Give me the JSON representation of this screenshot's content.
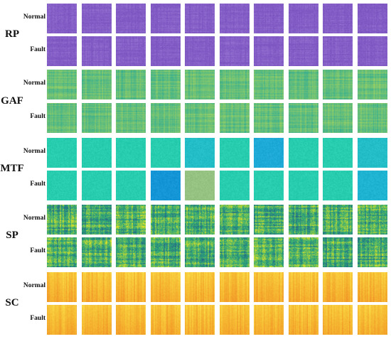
{
  "figure": {
    "groups": [
      {
        "name": "RP",
        "colormap": "purple",
        "rows": [
          {
            "label": "Normal",
            "tiles": 10
          },
          {
            "label": "Fault",
            "tiles": 10
          }
        ]
      },
      {
        "name": "GAF",
        "colormap": "viridis-light",
        "rows": [
          {
            "label": "Normal",
            "tiles": 10
          },
          {
            "label": "Fault",
            "tiles": 10
          }
        ]
      },
      {
        "name": "MTF",
        "colormap": "teal",
        "rows": [
          {
            "label": "Normal",
            "tiles": 10
          },
          {
            "label": "Fault",
            "tiles": 10
          }
        ]
      },
      {
        "name": "SP",
        "colormap": "viridis",
        "rows": [
          {
            "label": "Normal",
            "tiles": 10
          },
          {
            "label": "Fault",
            "tiles": 10
          }
        ]
      },
      {
        "name": "SC",
        "colormap": "plasma-warm",
        "rows": [
          {
            "label": "Normal",
            "tiles": 10
          },
          {
            "label": "Fault",
            "tiles": 10
          }
        ]
      }
    ]
  }
}
